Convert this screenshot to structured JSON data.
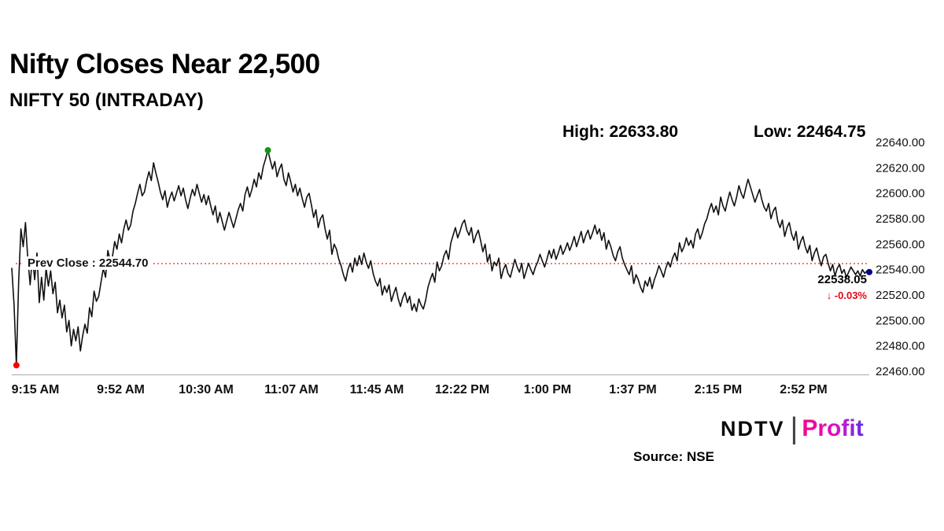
{
  "header": {
    "title": "Nifty Closes Near 22,500",
    "subtitle": "NIFTY 50 (INTRADAY)",
    "high": "High: 22633.80",
    "low": "Low: 22464.75"
  },
  "annotations": {
    "prev_close": "Prev Close : 22544.70",
    "last_price": "22538.05",
    "change": "↓ -0.03%"
  },
  "footer": {
    "source": "Source: NSE",
    "ndtv": "NDTV",
    "divider": "|",
    "profit": "Profit"
  },
  "chart_data": {
    "type": "line",
    "title": "NIFTY 50 (INTRADAY)",
    "x_unit": "minutes since 9:15 AM",
    "x_tick_labels": [
      "9:15 AM",
      "9:52 AM",
      "10:30 AM",
      "11:07 AM",
      "11:45 AM",
      "12:22 PM",
      "1:00 PM",
      "1:37 PM",
      "2:15 PM",
      "2:52 PM"
    ],
    "y_ticks": [
      22640,
      22620,
      22600,
      22580,
      22560,
      22540,
      22520,
      22500,
      22480,
      22460
    ],
    "ylim": [
      22460,
      22640
    ],
    "xlim_minutes": [
      0,
      375
    ],
    "grid": false,
    "line_color": "#111111",
    "axis_color": "#aaaaaa",
    "prev_close": {
      "value": 22544.7,
      "color": "#ff0000"
    },
    "high": {
      "t": 112,
      "value": 22633.8,
      "dot_color": "#149414"
    },
    "low": {
      "t": 2,
      "value": 22464.75,
      "dot_color": "#ff0000"
    },
    "close": {
      "t": 375,
      "value": 22538.05,
      "dot_color": "#00008b"
    },
    "points": [
      [
        0,
        22541
      ],
      [
        1,
        22512
      ],
      [
        2,
        22464.75
      ],
      [
        3,
        22530
      ],
      [
        4,
        22572
      ],
      [
        5,
        22558
      ],
      [
        6,
        22577
      ],
      [
        7,
        22549
      ],
      [
        8,
        22528
      ],
      [
        9,
        22550
      ],
      [
        10,
        22532
      ],
      [
        11,
        22553
      ],
      [
        12,
        22514
      ],
      [
        13,
        22534
      ],
      [
        14,
        22516
      ],
      [
        15,
        22541
      ],
      [
        16,
        22527
      ],
      [
        17,
        22539
      ],
      [
        18,
        22521
      ],
      [
        19,
        22530
      ],
      [
        20,
        22506
      ],
      [
        21,
        22516
      ],
      [
        22,
        22502
      ],
      [
        23,
        22512
      ],
      [
        24,
        22491
      ],
      [
        25,
        22500
      ],
      [
        26,
        22480
      ],
      [
        27,
        22493
      ],
      [
        28,
        22484
      ],
      [
        29,
        22495
      ],
      [
        30,
        22476
      ],
      [
        31,
        22488
      ],
      [
        32,
        22497
      ],
      [
        33,
        22490
      ],
      [
        34,
        22510
      ],
      [
        35,
        22503
      ],
      [
        36,
        22523
      ],
      [
        37,
        22515
      ],
      [
        38,
        22519
      ],
      [
        39,
        22530
      ],
      [
        40,
        22541
      ],
      [
        41,
        22534
      ],
      [
        42,
        22555
      ],
      [
        43,
        22547
      ],
      [
        44,
        22550
      ],
      [
        45,
        22562
      ],
      [
        46,
        22556
      ],
      [
        47,
        22568
      ],
      [
        48,
        22561
      ],
      [
        49,
        22572
      ],
      [
        50,
        22579
      ],
      [
        51,
        22571
      ],
      [
        52,
        22575
      ],
      [
        53,
        22586
      ],
      [
        54,
        22592
      ],
      [
        55,
        22600
      ],
      [
        56,
        22607
      ],
      [
        57,
        22598
      ],
      [
        58,
        22601
      ],
      [
        59,
        22610
      ],
      [
        60,
        22617
      ],
      [
        61,
        22610
      ],
      [
        62,
        22624
      ],
      [
        63,
        22616
      ],
      [
        64,
        22609
      ],
      [
        65,
        22601
      ],
      [
        66,
        22595
      ],
      [
        67,
        22602
      ],
      [
        68,
        22589
      ],
      [
        69,
        22596
      ],
      [
        70,
        22601
      ],
      [
        71,
        22594
      ],
      [
        72,
        22600
      ],
      [
        73,
        22606
      ],
      [
        74,
        22598
      ],
      [
        75,
        22604
      ],
      [
        76,
        22595
      ],
      [
        77,
        22588
      ],
      [
        78,
        22596
      ],
      [
        79,
        22603
      ],
      [
        80,
        22598
      ],
      [
        81,
        22607
      ],
      [
        82,
        22600
      ],
      [
        83,
        22593
      ],
      [
        84,
        22599
      ],
      [
        85,
        22591
      ],
      [
        86,
        22598
      ],
      [
        87,
        22590
      ],
      [
        88,
        22583
      ],
      [
        89,
        22590
      ],
      [
        90,
        22577
      ],
      [
        91,
        22585
      ],
      [
        92,
        22578
      ],
      [
        93,
        22571
      ],
      [
        94,
        22578
      ],
      [
        95,
        22585
      ],
      [
        96,
        22579
      ],
      [
        97,
        22573
      ],
      [
        98,
        22580
      ],
      [
        99,
        22587
      ],
      [
        100,
        22592
      ],
      [
        101,
        22586
      ],
      [
        102,
        22599
      ],
      [
        103,
        22605
      ],
      [
        104,
        22597
      ],
      [
        105,
        22603
      ],
      [
        106,
        22611
      ],
      [
        107,
        22605
      ],
      [
        108,
        22616
      ],
      [
        109,
        22611
      ],
      [
        110,
        22621
      ],
      [
        111,
        22627
      ],
      [
        112,
        22633.8
      ],
      [
        113,
        22626
      ],
      [
        114,
        22619
      ],
      [
        115,
        22625
      ],
      [
        116,
        22613
      ],
      [
        117,
        22619
      ],
      [
        118,
        22623
      ],
      [
        119,
        22611
      ],
      [
        120,
        22606
      ],
      [
        121,
        22616
      ],
      [
        122,
        22609
      ],
      [
        123,
        22601
      ],
      [
        124,
        22607
      ],
      [
        125,
        22598
      ],
      [
        126,
        22604
      ],
      [
        127,
        22596
      ],
      [
        128,
        22589
      ],
      [
        129,
        22597
      ],
      [
        130,
        22600
      ],
      [
        131,
        22591
      ],
      [
        132,
        22581
      ],
      [
        133,
        22587
      ],
      [
        134,
        22573
      ],
      [
        135,
        22580
      ],
      [
        136,
        22583
      ],
      [
        137,
        22572
      ],
      [
        138,
        22564
      ],
      [
        139,
        22571
      ],
      [
        140,
        22552
      ],
      [
        141,
        22560
      ],
      [
        142,
        22556
      ],
      [
        143,
        22548
      ],
      [
        144,
        22543
      ],
      [
        145,
        22536
      ],
      [
        146,
        22531
      ],
      [
        147,
        22540
      ],
      [
        148,
        22545
      ],
      [
        149,
        22538
      ],
      [
        150,
        22549
      ],
      [
        151,
        22543
      ],
      [
        152,
        22551
      ],
      [
        153,
        22544
      ],
      [
        154,
        22553
      ],
      [
        155,
        22546
      ],
      [
        156,
        22541
      ],
      [
        157,
        22547
      ],
      [
        158,
        22537
      ],
      [
        159,
        22531
      ],
      [
        160,
        22527
      ],
      [
        161,
        22533
      ],
      [
        162,
        22520
      ],
      [
        163,
        22527
      ],
      [
        164,
        22522
      ],
      [
        165,
        22528
      ],
      [
        166,
        22515
      ],
      [
        167,
        22521
      ],
      [
        168,
        22526
      ],
      [
        169,
        22517
      ],
      [
        170,
        22511
      ],
      [
        171,
        22518
      ],
      [
        172,
        22522
      ],
      [
        173,
        22514
      ],
      [
        174,
        22519
      ],
      [
        175,
        22508
      ],
      [
        176,
        22513
      ],
      [
        177,
        22507
      ],
      [
        178,
        22517
      ],
      [
        179,
        22512
      ],
      [
        180,
        22509
      ],
      [
        181,
        22516
      ],
      [
        182,
        22526
      ],
      [
        183,
        22532
      ],
      [
        184,
        22537
      ],
      [
        185,
        22530
      ],
      [
        186,
        22546
      ],
      [
        187,
        22539
      ],
      [
        188,
        22543
      ],
      [
        189,
        22551
      ],
      [
        190,
        22555
      ],
      [
        191,
        22548
      ],
      [
        192,
        22561
      ],
      [
        193,
        22567
      ],
      [
        194,
        22573
      ],
      [
        195,
        22565
      ],
      [
        196,
        22570
      ],
      [
        197,
        22576
      ],
      [
        198,
        22579
      ],
      [
        199,
        22571
      ],
      [
        200,
        22567
      ],
      [
        201,
        22573
      ],
      [
        202,
        22561
      ],
      [
        203,
        22567
      ],
      [
        204,
        22571
      ],
      [
        205,
        22563
      ],
      [
        206,
        22554
      ],
      [
        207,
        22560
      ],
      [
        208,
        22546
      ],
      [
        209,
        22552
      ],
      [
        210,
        22539
      ],
      [
        211,
        22546
      ],
      [
        212,
        22543
      ],
      [
        213,
        22549
      ],
      [
        214,
        22533
      ],
      [
        215,
        22540
      ],
      [
        216,
        22544
      ],
      [
        217,
        22537
      ],
      [
        218,
        22534
      ],
      [
        219,
        22541
      ],
      [
        220,
        22548
      ],
      [
        221,
        22542
      ],
      [
        222,
        22538
      ],
      [
        223,
        22545
      ],
      [
        224,
        22533
      ],
      [
        225,
        22539
      ],
      [
        226,
        22545
      ],
      [
        227,
        22540
      ],
      [
        228,
        22536
      ],
      [
        229,
        22542
      ],
      [
        230,
        22546
      ],
      [
        231,
        22552
      ],
      [
        232,
        22547
      ],
      [
        233,
        22542
      ],
      [
        234,
        22548
      ],
      [
        235,
        22555
      ],
      [
        236,
        22549
      ],
      [
        237,
        22556
      ],
      [
        238,
        22548
      ],
      [
        239,
        22553
      ],
      [
        240,
        22559
      ],
      [
        241,
        22552
      ],
      [
        242,
        22556
      ],
      [
        243,
        22561
      ],
      [
        244,
        22555
      ],
      [
        245,
        22560
      ],
      [
        246,
        22566
      ],
      [
        247,
        22558
      ],
      [
        248,
        22564
      ],
      [
        249,
        22570
      ],
      [
        250,
        22561
      ],
      [
        251,
        22567
      ],
      [
        252,
        22571
      ],
      [
        253,
        22564
      ],
      [
        254,
        22569
      ],
      [
        255,
        22575
      ],
      [
        256,
        22568
      ],
      [
        257,
        22572
      ],
      [
        258,
        22563
      ],
      [
        259,
        22569
      ],
      [
        260,
        22556
      ],
      [
        261,
        22563
      ],
      [
        262,
        22558
      ],
      [
        263,
        22551
      ],
      [
        264,
        22547
      ],
      [
        265,
        22554
      ],
      [
        266,
        22558
      ],
      [
        267,
        22549
      ],
      [
        268,
        22544
      ],
      [
        269,
        22540
      ],
      [
        270,
        22536
      ],
      [
        271,
        22543
      ],
      [
        272,
        22529
      ],
      [
        273,
        22536
      ],
      [
        274,
        22532
      ],
      [
        275,
        22526
      ],
      [
        276,
        22522
      ],
      [
        277,
        22531
      ],
      [
        278,
        22527
      ],
      [
        279,
        22534
      ],
      [
        280,
        22525
      ],
      [
        281,
        22532
      ],
      [
        282,
        22537
      ],
      [
        283,
        22543
      ],
      [
        284,
        22539
      ],
      [
        285,
        22534
      ],
      [
        286,
        22541
      ],
      [
        287,
        22546
      ],
      [
        288,
        22542
      ],
      [
        289,
        22549
      ],
      [
        290,
        22553
      ],
      [
        291,
        22547
      ],
      [
        292,
        22561
      ],
      [
        293,
        22554
      ],
      [
        294,
        22558
      ],
      [
        295,
        22565
      ],
      [
        296,
        22559
      ],
      [
        297,
        22563
      ],
      [
        298,
        22557
      ],
      [
        299,
        22568
      ],
      [
        300,
        22572
      ],
      [
        301,
        22564
      ],
      [
        302,
        22569
      ],
      [
        303,
        22576
      ],
      [
        304,
        22580
      ],
      [
        305,
        22587
      ],
      [
        306,
        22592
      ],
      [
        307,
        22585
      ],
      [
        308,
        22590
      ],
      [
        309,
        22583
      ],
      [
        310,
        22597
      ],
      [
        311,
        22590
      ],
      [
        312,
        22586
      ],
      [
        313,
        22594
      ],
      [
        314,
        22601
      ],
      [
        315,
        22595
      ],
      [
        316,
        22590
      ],
      [
        317,
        22597
      ],
      [
        318,
        22606
      ],
      [
        319,
        22600
      ],
      [
        320,
        22596
      ],
      [
        321,
        22604
      ],
      [
        322,
        22611
      ],
      [
        323,
        22605
      ],
      [
        324,
        22599
      ],
      [
        325,
        22593
      ],
      [
        326,
        22598
      ],
      [
        327,
        22603
      ],
      [
        328,
        22595
      ],
      [
        329,
        22589
      ],
      [
        330,
        22586
      ],
      [
        331,
        22592
      ],
      [
        332,
        22580
      ],
      [
        333,
        22586
      ],
      [
        334,
        22589
      ],
      [
        335,
        22578
      ],
      [
        336,
        22573
      ],
      [
        337,
        22579
      ],
      [
        338,
        22566
      ],
      [
        339,
        22573
      ],
      [
        340,
        22577
      ],
      [
        341,
        22568
      ],
      [
        342,
        22563
      ],
      [
        343,
        22570
      ],
      [
        344,
        22556
      ],
      [
        345,
        22562
      ],
      [
        346,
        22566
      ],
      [
        347,
        22558
      ],
      [
        348,
        22553
      ],
      [
        349,
        22559
      ],
      [
        350,
        22547
      ],
      [
        351,
        22553
      ],
      [
        352,
        22557
      ],
      [
        353,
        22549
      ],
      [
        354,
        22543
      ],
      [
        355,
        22550
      ],
      [
        356,
        22552
      ],
      [
        357,
        22545
      ],
      [
        358,
        22539
      ],
      [
        359,
        22544
      ],
      [
        360,
        22535
      ],
      [
        361,
        22541
      ],
      [
        362,
        22544
      ],
      [
        363,
        22537
      ],
      [
        364,
        22540
      ],
      [
        365,
        22534
      ],
      [
        366,
        22538
      ],
      [
        367,
        22542
      ],
      [
        368,
        22539
      ],
      [
        369,
        22536
      ],
      [
        370,
        22539
      ],
      [
        371,
        22535
      ],
      [
        372,
        22540
      ],
      [
        373,
        22537
      ],
      [
        374,
        22539
      ],
      [
        375,
        22538.05
      ]
    ]
  }
}
